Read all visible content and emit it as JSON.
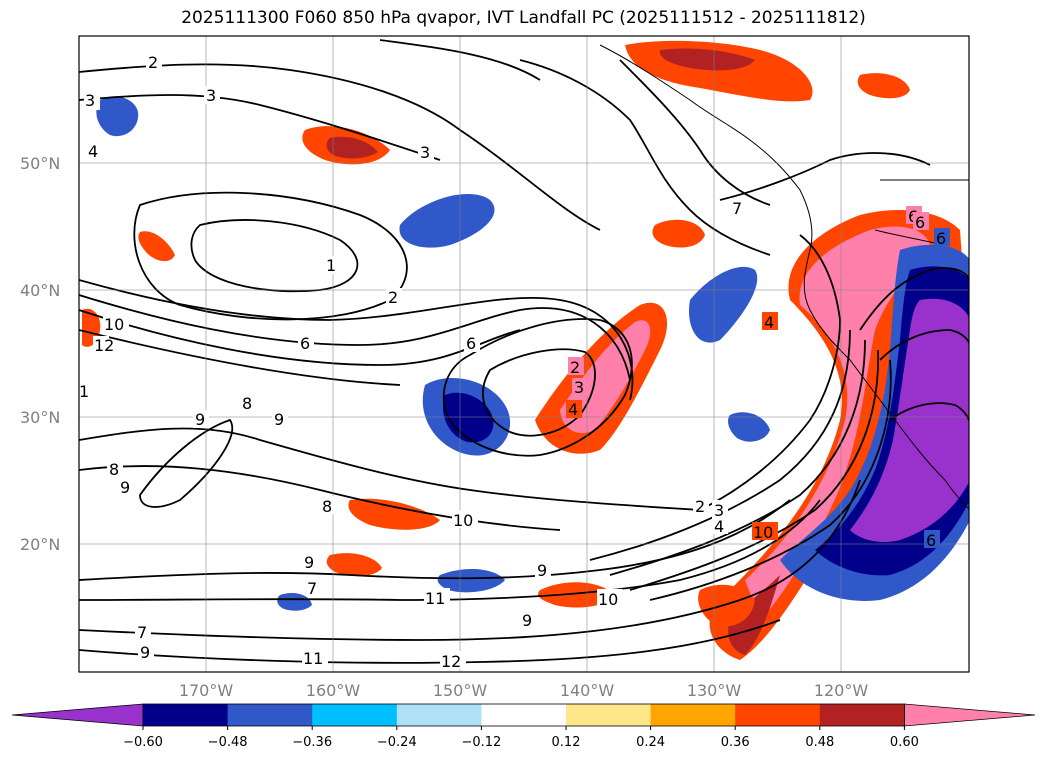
{
  "title": "2025111300 F060 850 hPa qvapor, IVT Landfall PC (2025111512 - 2025111812)",
  "map": {
    "lon_ticks": [
      "170°W",
      "160°W",
      "150°W",
      "140°W",
      "130°W",
      "120°W"
    ],
    "lat_ticks": [
      "50°N",
      "40°N",
      "30°N",
      "20°N"
    ],
    "gridlines": true
  },
  "colorbar": {
    "ticks": [
      "−0.60",
      "−0.48",
      "−0.36",
      "−0.24",
      "−0.12",
      "0.12",
      "0.24",
      "0.36",
      "0.48",
      "0.60"
    ],
    "colors": {
      "under": "#9932cc",
      "bins": [
        "#00008b",
        "#3158c8",
        "#00bfff",
        "#aee1f8",
        "#ffffff",
        "#ffe68a",
        "#ffa500",
        "#ff4500",
        "#b22222"
      ],
      "over": "#ff80ab"
    }
  },
  "contour_labels": [
    "2",
    "3",
    "3",
    "4",
    "3",
    "1",
    "2",
    "6",
    "6",
    "10",
    "12",
    "1",
    "2",
    "3",
    "4",
    "7",
    "4",
    "6",
    "6",
    "8",
    "9",
    "9",
    "8",
    "9",
    "8",
    "9",
    "7",
    "11",
    "9",
    "10",
    "12",
    "11",
    "9",
    "7",
    "6",
    "10",
    "3",
    "2",
    "4",
    "9",
    "6",
    "10"
  ]
}
